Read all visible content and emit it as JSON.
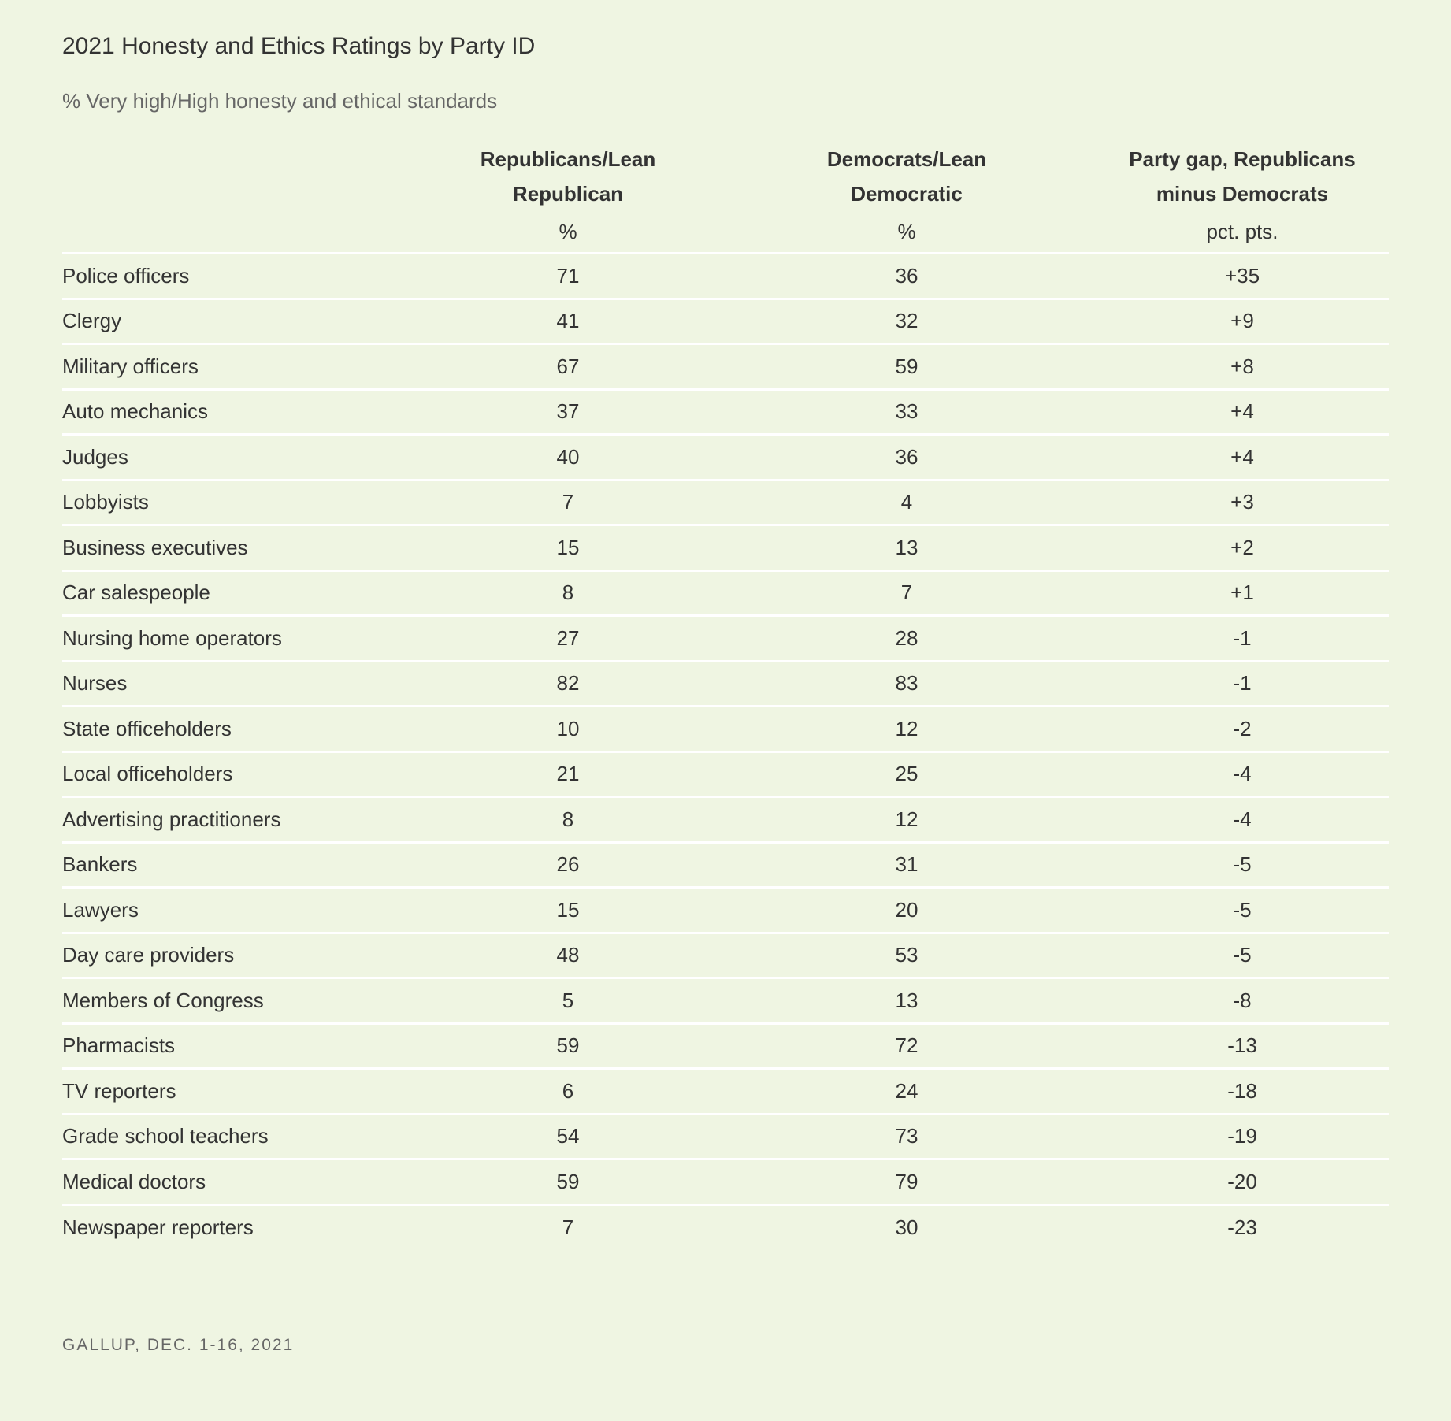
{
  "chart_data": {
    "type": "table",
    "title": "2021 Honesty and Ethics Ratings by Party ID",
    "subtitle": "% Very high/High honesty and ethical standards",
    "columns": [
      {
        "name_lines": [
          "Republicans/Lean",
          "Republican"
        ],
        "unit": "%"
      },
      {
        "name_lines": [
          "Democrats/Lean",
          "Democratic"
        ],
        "unit": "%"
      },
      {
        "name_lines": [
          "Party gap, Republicans",
          "minus Democrats"
        ],
        "unit": "pct. pts."
      }
    ],
    "rows": [
      {
        "label": "Police officers",
        "republicans": "71",
        "democrats": "36",
        "gap": "+35"
      },
      {
        "label": "Clergy",
        "republicans": "41",
        "democrats": "32",
        "gap": "+9"
      },
      {
        "label": "Military officers",
        "republicans": "67",
        "democrats": "59",
        "gap": "+8"
      },
      {
        "label": "Auto mechanics",
        "republicans": "37",
        "democrats": "33",
        "gap": "+4"
      },
      {
        "label": "Judges",
        "republicans": "40",
        "democrats": "36",
        "gap": "+4"
      },
      {
        "label": "Lobbyists",
        "republicans": "7",
        "democrats": "4",
        "gap": "+3"
      },
      {
        "label": "Business executives",
        "republicans": "15",
        "democrats": "13",
        "gap": "+2"
      },
      {
        "label": "Car salespeople",
        "republicans": "8",
        "democrats": "7",
        "gap": "+1"
      },
      {
        "label": "Nursing home operators",
        "republicans": "27",
        "democrats": "28",
        "gap": "-1"
      },
      {
        "label": "Nurses",
        "republicans": "82",
        "democrats": "83",
        "gap": "-1"
      },
      {
        "label": "State officeholders",
        "republicans": "10",
        "democrats": "12",
        "gap": "-2"
      },
      {
        "label": "Local officeholders",
        "republicans": "21",
        "democrats": "25",
        "gap": "-4"
      },
      {
        "label": "Advertising practitioners",
        "republicans": "8",
        "democrats": "12",
        "gap": "-4"
      },
      {
        "label": "Bankers",
        "republicans": "26",
        "democrats": "31",
        "gap": "-5"
      },
      {
        "label": "Lawyers",
        "republicans": "15",
        "democrats": "20",
        "gap": "-5"
      },
      {
        "label": "Day care providers",
        "republicans": "48",
        "democrats": "53",
        "gap": "-5"
      },
      {
        "label": "Members of Congress",
        "republicans": "5",
        "democrats": "13",
        "gap": "-8"
      },
      {
        "label": "Pharmacists",
        "republicans": "59",
        "democrats": "72",
        "gap": "-13"
      },
      {
        "label": "TV reporters",
        "republicans": "6",
        "democrats": "24",
        "gap": "-18"
      },
      {
        "label": "Grade school teachers",
        "republicans": "54",
        "democrats": "73",
        "gap": "-19"
      },
      {
        "label": "Medical doctors",
        "republicans": "59",
        "democrats": "79",
        "gap": "-20"
      },
      {
        "label": "Newspaper reporters",
        "republicans": "7",
        "democrats": "30",
        "gap": "-23"
      }
    ],
    "source": "GALLUP, DEC. 1-16, 2021"
  },
  "colors": {
    "background": "#eff5e2",
    "text": "#333333",
    "muted_text": "#666666",
    "row_divider": "#ffffff"
  }
}
